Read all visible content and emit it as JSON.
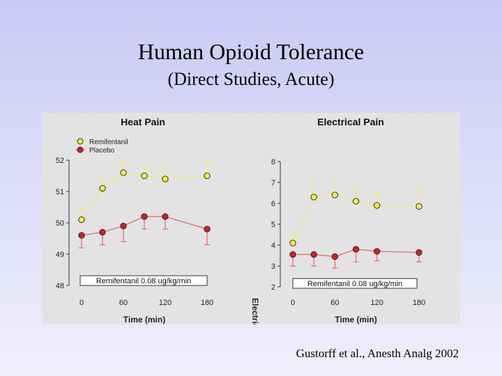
{
  "slide": {
    "title": "Human Opioid Tolerance",
    "subtitle": "(Direct Studies, Acute)",
    "citation": "Gustorff et al., Anesth Analg 2002"
  },
  "colors": {
    "remifentanil": "#f4ef3c",
    "placebo": "#d81f1f",
    "remifentanil_line": "#eeea78",
    "placebo_line": "#e36868",
    "panel_bg": "#e3e3e3"
  },
  "chart_data": [
    {
      "type": "line",
      "title": "Heat Pain",
      "xlabel": "Time (min)",
      "ylabel": "",
      "xlim": [
        0,
        180
      ],
      "ylim": [
        48,
        52
      ],
      "xticks": [
        0,
        60,
        120,
        180
      ],
      "yticks": [
        48,
        49,
        50,
        51,
        52
      ],
      "infusion_label": "Remifentanil 0.08 ug/kg/min",
      "legend": [
        "Remifentanil",
        "Placebo"
      ],
      "legend_position": "top-left",
      "series": [
        {
          "name": "Remifentanil",
          "x": [
            0,
            30,
            60,
            90,
            120,
            180
          ],
          "values": [
            50.1,
            51.1,
            51.6,
            51.5,
            51.4,
            51.5
          ],
          "error": [
            0.35,
            0.4,
            0.35,
            0.35,
            0.35,
            0.45
          ],
          "error_direction": "up"
        },
        {
          "name": "Placebo",
          "x": [
            0,
            30,
            60,
            90,
            120,
            180
          ],
          "values": [
            49.6,
            49.7,
            49.9,
            50.2,
            50.2,
            49.8
          ],
          "error": [
            0.4,
            0.4,
            0.5,
            0.4,
            0.4,
            0.5
          ],
          "error_direction": "down"
        }
      ]
    },
    {
      "type": "line",
      "title": "Electrical Pain",
      "xlabel": "Time (min)",
      "ylabel": "Electric",
      "xlim": [
        0,
        180
      ],
      "ylim": [
        2,
        8
      ],
      "xticks": [
        0,
        60,
        120,
        180
      ],
      "yticks": [
        2,
        3,
        4,
        5,
        6,
        7,
        8
      ],
      "infusion_label": "Remifentanil 0.08 ug/kg/min",
      "series": [
        {
          "name": "Remifentanil",
          "x": [
            0,
            30,
            60,
            90,
            120,
            180
          ],
          "values": [
            4.1,
            6.3,
            6.4,
            6.1,
            5.9,
            5.85
          ],
          "error": [
            0.5,
            0.7,
            0.6,
            0.6,
            0.6,
            0.8
          ],
          "error_direction": "up"
        },
        {
          "name": "Placebo",
          "x": [
            0,
            30,
            60,
            90,
            120,
            180
          ],
          "values": [
            3.55,
            3.55,
            3.45,
            3.8,
            3.7,
            3.65
          ],
          "error": [
            0.55,
            0.55,
            0.55,
            0.6,
            0.45,
            0.45
          ],
          "error_direction": "down"
        }
      ]
    }
  ]
}
